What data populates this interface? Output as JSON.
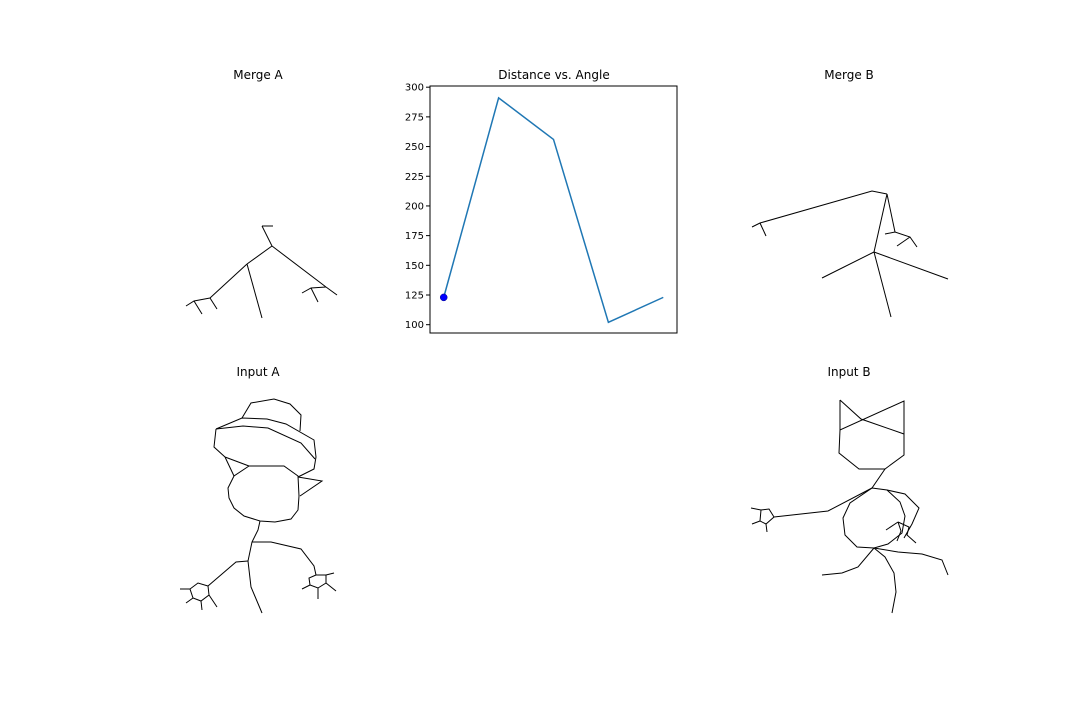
{
  "panels": {
    "merge_a": {
      "title": "Merge A"
    },
    "chart": {
      "title": "Distance vs. Angle"
    },
    "merge_b": {
      "title": "Merge B"
    },
    "input_a": {
      "title": "Input A"
    },
    "input_b": {
      "title": "Input B"
    }
  },
  "colors": {
    "line": "#1f77b4",
    "marker": "#0000ff",
    "stroke": "#000000"
  },
  "chart_data": {
    "type": "line",
    "title": "Distance vs. Angle",
    "xlabel": "",
    "ylabel": "",
    "x": [
      0,
      1,
      2,
      3,
      4
    ],
    "series": [
      {
        "values": [
          123,
          291,
          256,
          102,
          123
        ]
      }
    ],
    "highlight_point": {
      "x": 0,
      "y": 123
    },
    "ylim": [
      93,
      301
    ],
    "yticks": [
      100,
      125,
      150,
      175,
      200,
      225,
      250,
      275,
      300
    ],
    "x_ticks_visible": false,
    "grid": false
  }
}
